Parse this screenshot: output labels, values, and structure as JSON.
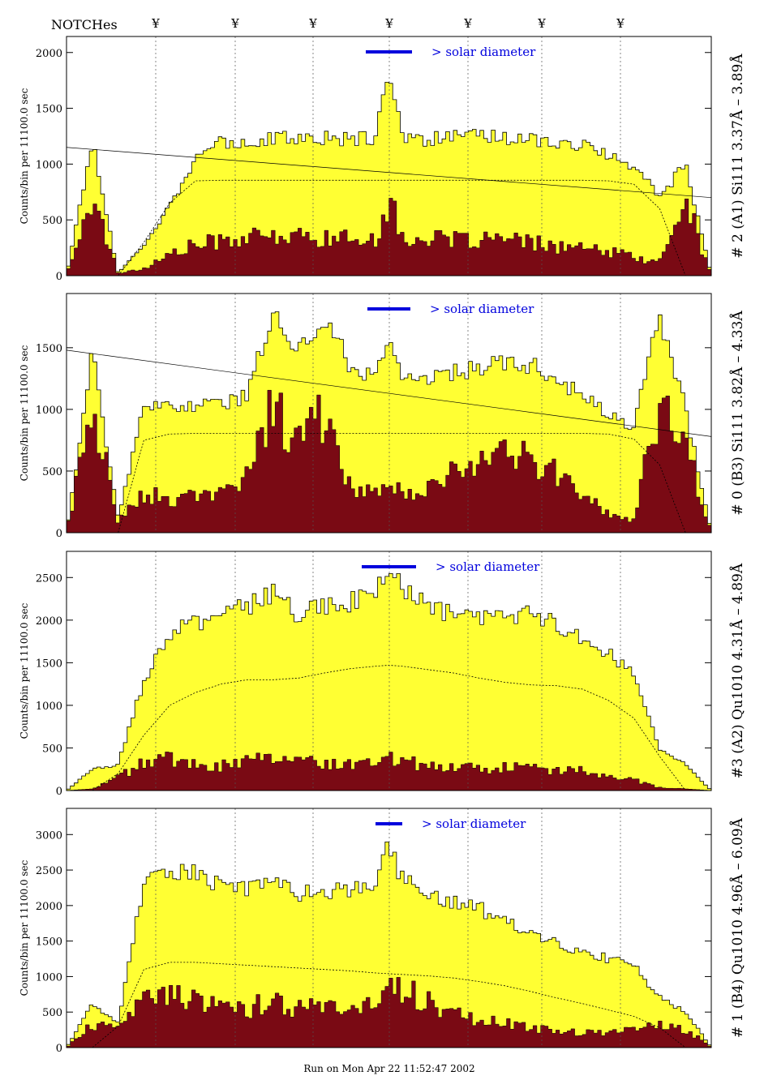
{
  "header": {
    "notches_label": "NOTCHes",
    "notch_symbol": "¥",
    "notch_count": 7
  },
  "footer": {
    "run_text": "Run on Mon Apr 22 11:52:47 2002"
  },
  "colors": {
    "fill": "#ffff33",
    "dark": "#7a0a14",
    "accent": "#0000dd",
    "frame": "#000000"
  },
  "chart_data": [
    {
      "type": "area",
      "ylabel": "Counts/bin per  11100.0 sec",
      "side_label": "# 2 (A1) Si111  3.37Å – 3.89Å",
      "solar_label": "> solar diameter",
      "ylim": [
        0,
        2100
      ],
      "yticks": [
        0,
        500,
        1000,
        1500,
        2000
      ],
      "x": [
        0,
        4,
        8,
        12,
        16,
        20,
        24,
        28,
        32,
        36,
        40,
        44,
        48,
        50,
        52,
        56,
        60,
        64,
        68,
        72,
        76,
        80,
        84,
        88,
        92,
        96,
        100
      ],
      "series": [
        {
          "name": "total",
          "values": [
            0,
            1200,
            20,
            280,
            620,
            1050,
            1180,
            1200,
            1220,
            1230,
            1230,
            1220,
            1230,
            1900,
            1230,
            1220,
            1230,
            1240,
            1230,
            1220,
            1200,
            1160,
            1080,
            980,
            700,
            1000,
            0
          ]
        },
        {
          "name": "background",
          "values": [
            0,
            700,
            20,
            60,
            180,
            260,
            300,
            320,
            330,
            330,
            320,
            310,
            320,
            650,
            320,
            310,
            300,
            310,
            300,
            280,
            250,
            230,
            200,
            160,
            110,
            650,
            0
          ]
        },
        {
          "name": "model",
          "values": [
            0,
            0,
            0,
            300,
            650,
            850,
            855,
            855,
            855,
            855,
            855,
            855,
            855,
            855,
            855,
            855,
            855,
            855,
            855,
            855,
            855,
            855,
            850,
            820,
            600,
            0,
            0
          ]
        }
      ]
    },
    {
      "type": "area",
      "ylabel": "Counts/bin per  11100.0 sec",
      "side_label": "# 0 (B3) Si111  3.82Å – 4.33Å",
      "solar_label": "> solar diameter",
      "ylim": [
        0,
        1900
      ],
      "yticks": [
        0,
        500,
        1000,
        1500
      ],
      "x": [
        0,
        4,
        8,
        12,
        16,
        20,
        24,
        28,
        32,
        36,
        40,
        44,
        48,
        50,
        52,
        56,
        60,
        64,
        68,
        72,
        76,
        80,
        84,
        88,
        92,
        96,
        100
      ],
      "series": [
        {
          "name": "total",
          "values": [
            0,
            1450,
            120,
            1000,
            1020,
            1030,
            1040,
            1100,
            1800,
            1450,
            1750,
            1350,
            1250,
            1600,
            1230,
            1250,
            1300,
            1320,
            1380,
            1350,
            1250,
            1100,
            950,
            850,
            1750,
            1000,
            0
          ]
        },
        {
          "name": "background",
          "values": [
            0,
            1000,
            80,
            300,
            250,
            270,
            300,
            450,
            980,
            650,
            950,
            380,
            300,
            380,
            300,
            380,
            450,
            500,
            600,
            550,
            450,
            300,
            150,
            100,
            1000,
            700,
            0
          ]
        },
        {
          "name": "model",
          "values": [
            0,
            0,
            0,
            750,
            800,
            805,
            805,
            805,
            805,
            805,
            805,
            805,
            805,
            805,
            805,
            805,
            805,
            805,
            805,
            805,
            805,
            805,
            800,
            760,
            550,
            0,
            0
          ]
        }
      ]
    },
    {
      "type": "area",
      "ylabel": "Counts/bin per  11100.0 sec",
      "side_label": "#3 (A2) Qu1010  4.31Å – 4.89Å",
      "solar_label": "> solar diameter",
      "ylim": [
        0,
        2750
      ],
      "yticks": [
        0,
        500,
        1000,
        1500,
        2000,
        2500
      ],
      "x": [
        0,
        4,
        8,
        12,
        16,
        20,
        24,
        28,
        32,
        36,
        40,
        44,
        48,
        50,
        52,
        56,
        60,
        64,
        68,
        72,
        76,
        80,
        84,
        88,
        92,
        96,
        100
      ],
      "series": [
        {
          "name": "total",
          "values": [
            0,
            250,
            300,
            1300,
            1850,
            1950,
            2050,
            2150,
            2300,
            2050,
            2150,
            2200,
            2350,
            2550,
            2350,
            2150,
            2050,
            2000,
            2050,
            2050,
            1950,
            1800,
            1600,
            1350,
            500,
            300,
            0
          ]
        },
        {
          "name": "background",
          "values": [
            0,
            20,
            150,
            300,
            350,
            300,
            280,
            320,
            400,
            300,
            320,
            300,
            350,
            400,
            330,
            280,
            260,
            240,
            260,
            250,
            230,
            220,
            180,
            120,
            30,
            20,
            0
          ]
        },
        {
          "name": "model",
          "values": [
            0,
            0,
            200,
            650,
            1000,
            1150,
            1250,
            1300,
            1300,
            1320,
            1380,
            1430,
            1460,
            1470,
            1460,
            1420,
            1380,
            1320,
            1270,
            1240,
            1230,
            1190,
            1060,
            850,
            400,
            0,
            0
          ]
        }
      ]
    },
    {
      "type": "area",
      "ylabel": "Counts/bin per  11100.0 sec",
      "side_label": "# 1 (B4) Qu1010 4.96Å – 6.09Å",
      "solar_label": "> solar diameter",
      "ylim": [
        0,
        3300
      ],
      "yticks": [
        0,
        500,
        1000,
        1500,
        2000,
        2500,
        3000
      ],
      "x": [
        0,
        4,
        8,
        12,
        16,
        20,
        24,
        28,
        32,
        36,
        40,
        44,
        48,
        50,
        52,
        56,
        60,
        64,
        68,
        72,
        76,
        80,
        84,
        88,
        92,
        96,
        100
      ],
      "series": [
        {
          "name": "total",
          "values": [
            0,
            600,
            350,
            2300,
            2450,
            2450,
            2250,
            2200,
            2350,
            2150,
            2200,
            2200,
            2300,
            2900,
            2350,
            2150,
            2050,
            1950,
            1750,
            1650,
            1450,
            1350,
            1250,
            1150,
            700,
            500,
            0
          ]
        },
        {
          "name": "background",
          "values": [
            0,
            300,
            250,
            700,
            750,
            650,
            550,
            500,
            650,
            500,
            550,
            550,
            600,
            750,
            800,
            600,
            450,
            380,
            320,
            250,
            220,
            200,
            200,
            250,
            300,
            250,
            0
          ]
        },
        {
          "name": "model",
          "values": [
            0,
            0,
            300,
            1100,
            1200,
            1200,
            1180,
            1160,
            1140,
            1120,
            1100,
            1080,
            1050,
            1040,
            1030,
            1010,
            980,
            930,
            870,
            790,
            700,
            620,
            530,
            440,
            280,
            0,
            0
          ]
        }
      ]
    }
  ]
}
